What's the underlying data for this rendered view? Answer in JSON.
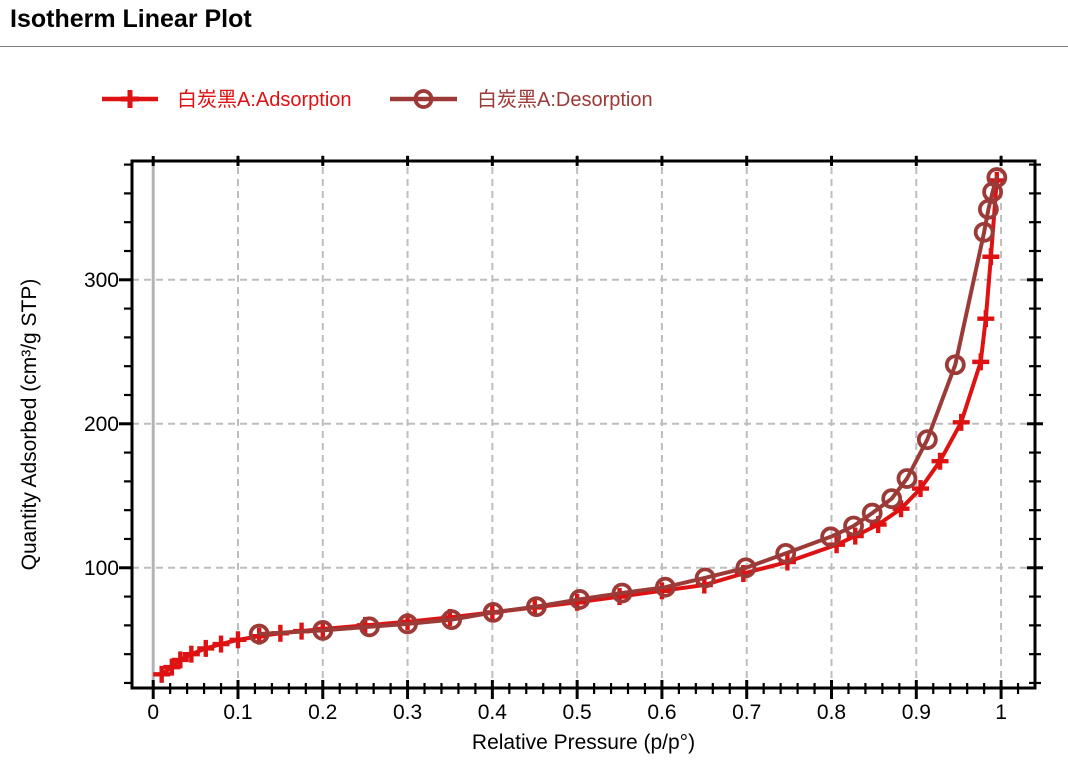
{
  "page": {
    "title": "Isotherm Linear Plot"
  },
  "colors": {
    "adsorption": "#de1212",
    "desorption": "#9b3a37",
    "axis": "#000000",
    "grid": "#bdbdbd",
    "zero_line": "#b3b3b3",
    "divider": "#7d7d7d"
  },
  "chart_data": {
    "type": "line",
    "title": "Isotherm Linear Plot",
    "xlabel": "Relative Pressure (p/p°)",
    "ylabel": "Quantity Adsorbed (cm³/g STP)",
    "legend_position": "top",
    "grid": {
      "style": "dashed",
      "color": "#bdbdbd",
      "zero_line_color": "#b3b3b3"
    },
    "x_axis": {
      "label": "Relative Pressure (p/p°)",
      "min": -0.025,
      "max": 1.04,
      "major_ticks": [
        0,
        0.1,
        0.2,
        0.3,
        0.4,
        0.5,
        0.6,
        0.7,
        0.8,
        0.9,
        1.0
      ],
      "tick_labels": [
        "0",
        "0.1",
        "0.2",
        "0.3",
        "0.4",
        "0.5",
        "0.6",
        "0.7",
        "0.8",
        "0.9",
        "1"
      ],
      "minor_step": 0.02
    },
    "y_axis": {
      "label": "Quantity Adsorbed (cm³/g STP)",
      "min": 16.5,
      "max": 382.5,
      "major_ticks": [
        100,
        200,
        300
      ],
      "tick_labels": [
        "100",
        "200",
        "300"
      ],
      "minor_step": 20
    },
    "series": [
      {
        "name": "白炭黑A:Adsorption",
        "color": "#de1212",
        "marker": "plus",
        "x": [
          0.01,
          0.022,
          0.032,
          0.045,
          0.062,
          0.08,
          0.1,
          0.125,
          0.15,
          0.175,
          0.2,
          0.25,
          0.3,
          0.35,
          0.4,
          0.45,
          0.5,
          0.55,
          0.6,
          0.65,
          0.696,
          0.748,
          0.806,
          0.828,
          0.855,
          0.882,
          0.905,
          0.928,
          0.953,
          0.976,
          0.982,
          0.988,
          0.995
        ],
        "y": [
          26,
          31,
          36,
          40,
          44,
          47,
          50,
          52.5,
          54.5,
          56,
          57.5,
          60,
          62.5,
          65.5,
          69,
          72.5,
          76,
          80,
          84,
          88,
          96,
          104,
          116,
          122,
          130,
          141,
          155,
          174,
          201,
          243,
          273,
          316,
          369
        ]
      },
      {
        "name": "白炭黑A:Desorption",
        "color": "#9b3a37",
        "marker": "circle-open",
        "x": [
          0.125,
          0.2,
          0.255,
          0.3,
          0.352,
          0.401,
          0.452,
          0.503,
          0.553,
          0.604,
          0.651,
          0.699,
          0.746,
          0.799,
          0.826,
          0.848,
          0.871,
          0.889,
          0.913,
          0.946,
          0.98,
          0.985,
          0.99,
          0.995
        ],
        "y": [
          54,
          56.5,
          59,
          61,
          64,
          69,
          73,
          78,
          82.5,
          86.5,
          93,
          100,
          110,
          121.5,
          129,
          138,
          148,
          162,
          189,
          241,
          333,
          349,
          361,
          371
        ]
      }
    ]
  }
}
